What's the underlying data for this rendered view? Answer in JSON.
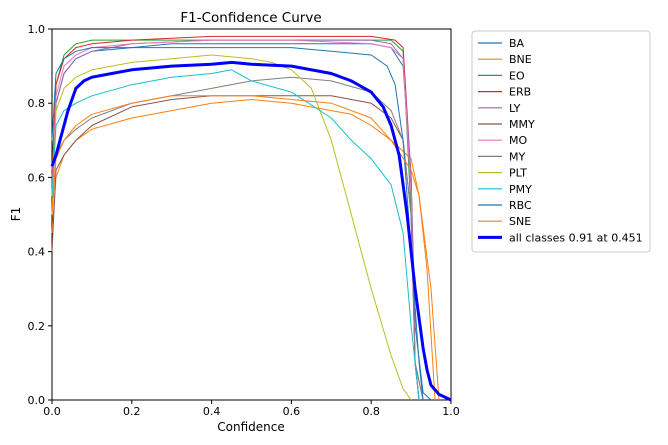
{
  "chart_data": {
    "type": "line",
    "title": "F1-Confidence Curve",
    "xlabel": "Confidence",
    "ylabel": "F1",
    "xlim": [
      0.0,
      1.0
    ],
    "ylim": [
      0.0,
      1.0
    ],
    "x_ticks": [
      "0.0",
      "0.2",
      "0.4",
      "0.6",
      "0.8",
      "1.0"
    ],
    "y_ticks": [
      "0.0",
      "0.2",
      "0.4",
      "0.6",
      "0.8",
      "1.0"
    ],
    "grid": false,
    "legend_position": "outside-right",
    "series": [
      {
        "name": "BA",
        "color": "#1f77b4",
        "x": [
          0,
          0.01,
          0.03,
          0.06,
          0.1,
          0.2,
          0.3,
          0.4,
          0.5,
          0.6,
          0.7,
          0.8,
          0.85,
          0.88,
          0.9,
          0.91,
          0.93,
          0.95
        ],
        "y": [
          0.58,
          0.8,
          0.88,
          0.92,
          0.94,
          0.95,
          0.96,
          0.96,
          0.96,
          0.96,
          0.96,
          0.96,
          0.95,
          0.9,
          0.6,
          0.2,
          0.02,
          0.0
        ]
      },
      {
        "name": "BNE",
        "color": "#ff7f0e",
        "x": [
          0,
          0.01,
          0.03,
          0.06,
          0.1,
          0.2,
          0.3,
          0.4,
          0.5,
          0.6,
          0.7,
          0.75,
          0.8,
          0.85,
          0.9,
          0.92,
          0.95,
          0.97
        ],
        "y": [
          0.45,
          0.6,
          0.66,
          0.7,
          0.73,
          0.76,
          0.78,
          0.8,
          0.81,
          0.8,
          0.78,
          0.77,
          0.74,
          0.7,
          0.65,
          0.55,
          0.3,
          0.0
        ]
      },
      {
        "name": "EO",
        "color": "#2ca02c",
        "x": [
          0,
          0.01,
          0.03,
          0.06,
          0.1,
          0.2,
          0.4,
          0.6,
          0.8,
          0.85,
          0.88,
          0.9,
          0.91,
          0.92
        ],
        "y": [
          0.62,
          0.85,
          0.93,
          0.96,
          0.97,
          0.97,
          0.97,
          0.97,
          0.97,
          0.97,
          0.94,
          0.5,
          0.1,
          0.0
        ]
      },
      {
        "name": "ERB",
        "color": "#d62728",
        "x": [
          0,
          0.01,
          0.03,
          0.06,
          0.1,
          0.2,
          0.4,
          0.6,
          0.8,
          0.86,
          0.88,
          0.9,
          0.91,
          0.92
        ],
        "y": [
          0.6,
          0.85,
          0.92,
          0.95,
          0.96,
          0.97,
          0.98,
          0.98,
          0.98,
          0.97,
          0.95,
          0.6,
          0.1,
          0.0
        ]
      },
      {
        "name": "LY",
        "color": "#9467bd",
        "x": [
          0,
          0.01,
          0.03,
          0.06,
          0.1,
          0.2,
          0.4,
          0.6,
          0.8,
          0.85,
          0.88,
          0.9,
          0.91,
          0.92
        ],
        "y": [
          0.55,
          0.8,
          0.88,
          0.92,
          0.94,
          0.96,
          0.97,
          0.97,
          0.97,
          0.96,
          0.92,
          0.6,
          0.1,
          0.0
        ]
      },
      {
        "name": "MMY",
        "color": "#8c564b",
        "x": [
          0,
          0.01,
          0.03,
          0.06,
          0.1,
          0.2,
          0.3,
          0.4,
          0.5,
          0.6,
          0.7,
          0.8,
          0.85,
          0.88,
          0.9,
          0.91,
          0.93
        ],
        "y": [
          0.4,
          0.62,
          0.66,
          0.7,
          0.74,
          0.79,
          0.81,
          0.82,
          0.82,
          0.82,
          0.82,
          0.8,
          0.76,
          0.7,
          0.5,
          0.1,
          0.0
        ]
      },
      {
        "name": "MO",
        "color": "#e377c2",
        "x": [
          0,
          0.01,
          0.03,
          0.06,
          0.1,
          0.2,
          0.4,
          0.6,
          0.8,
          0.85,
          0.88,
          0.9,
          0.91,
          0.92
        ],
        "y": [
          0.55,
          0.82,
          0.9,
          0.93,
          0.95,
          0.96,
          0.97,
          0.97,
          0.96,
          0.95,
          0.92,
          0.55,
          0.1,
          0.0
        ]
      },
      {
        "name": "MY",
        "color": "#7f7f7f",
        "x": [
          0,
          0.01,
          0.03,
          0.06,
          0.1,
          0.2,
          0.3,
          0.4,
          0.5,
          0.6,
          0.7,
          0.8,
          0.85,
          0.88,
          0.9,
          0.91,
          0.93
        ],
        "y": [
          0.5,
          0.66,
          0.7,
          0.73,
          0.76,
          0.8,
          0.82,
          0.84,
          0.86,
          0.87,
          0.86,
          0.83,
          0.78,
          0.7,
          0.5,
          0.1,
          0.0
        ]
      },
      {
        "name": "PLT",
        "color": "#bcbd22",
        "x": [
          0,
          0.01,
          0.03,
          0.06,
          0.1,
          0.2,
          0.3,
          0.4,
          0.5,
          0.55,
          0.6,
          0.65,
          0.7,
          0.75,
          0.8,
          0.85,
          0.88,
          0.9
        ],
        "y": [
          0.5,
          0.78,
          0.84,
          0.87,
          0.89,
          0.91,
          0.92,
          0.93,
          0.92,
          0.91,
          0.89,
          0.84,
          0.7,
          0.5,
          0.3,
          0.12,
          0.03,
          0.0
        ]
      },
      {
        "name": "PMY",
        "color": "#17becf",
        "x": [
          0,
          0.01,
          0.03,
          0.06,
          0.1,
          0.2,
          0.3,
          0.4,
          0.45,
          0.5,
          0.6,
          0.7,
          0.75,
          0.8,
          0.85,
          0.88,
          0.9,
          0.92
        ],
        "y": [
          0.55,
          0.74,
          0.78,
          0.8,
          0.82,
          0.85,
          0.87,
          0.88,
          0.89,
          0.86,
          0.83,
          0.76,
          0.7,
          0.65,
          0.58,
          0.45,
          0.2,
          0.0
        ]
      },
      {
        "name": "RBC",
        "color": "#1f77b4",
        "x": [
          0,
          0.01,
          0.03,
          0.06,
          0.1,
          0.2,
          0.4,
          0.6,
          0.7,
          0.8,
          0.84,
          0.86,
          0.88,
          0.9,
          0.92,
          0.93
        ],
        "y": [
          0.7,
          0.88,
          0.92,
          0.94,
          0.95,
          0.95,
          0.95,
          0.95,
          0.94,
          0.93,
          0.9,
          0.85,
          0.7,
          0.4,
          0.1,
          0.0
        ]
      },
      {
        "name": "SNE",
        "color": "#ff7f0e",
        "x": [
          0,
          0.01,
          0.03,
          0.06,
          0.1,
          0.2,
          0.3,
          0.4,
          0.5,
          0.6,
          0.7,
          0.8,
          0.85,
          0.9,
          0.92,
          0.94,
          0.96
        ],
        "y": [
          0.5,
          0.65,
          0.7,
          0.74,
          0.77,
          0.8,
          0.82,
          0.82,
          0.82,
          0.81,
          0.8,
          0.76,
          0.7,
          0.62,
          0.55,
          0.35,
          0.0
        ]
      },
      {
        "name": "all classes 0.91 at 0.451",
        "color": "#0000ff",
        "bold": true,
        "x": [
          0,
          0.01,
          0.02,
          0.04,
          0.06,
          0.08,
          0.1,
          0.15,
          0.2,
          0.3,
          0.4,
          0.451,
          0.5,
          0.6,
          0.7,
          0.75,
          0.8,
          0.83,
          0.85,
          0.87,
          0.88,
          0.89,
          0.9,
          0.91,
          0.92,
          0.93,
          0.94,
          0.95,
          0.97,
          1.0
        ],
        "y": [
          0.63,
          0.66,
          0.7,
          0.78,
          0.84,
          0.86,
          0.87,
          0.88,
          0.89,
          0.9,
          0.905,
          0.91,
          0.905,
          0.9,
          0.88,
          0.86,
          0.83,
          0.79,
          0.74,
          0.66,
          0.58,
          0.5,
          0.4,
          0.3,
          0.22,
          0.14,
          0.08,
          0.04,
          0.015,
          0.0
        ]
      }
    ]
  }
}
